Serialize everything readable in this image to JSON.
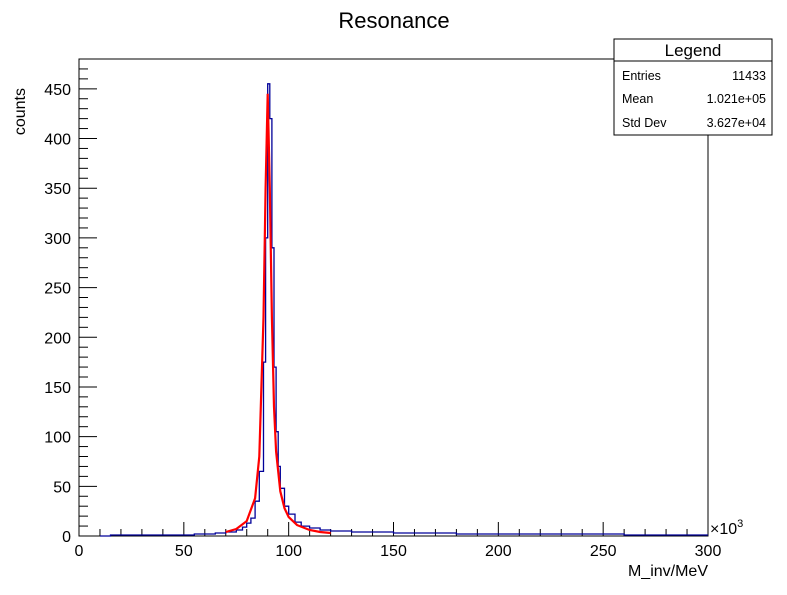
{
  "chart_data": {
    "type": "histogram",
    "title": "Resonance",
    "xlabel": "M_inv/MeV",
    "ylabel": "counts",
    "x_multiplier": "×10",
    "x_multiplier_exp": "3",
    "xlim": [
      0,
      300
    ],
    "ylim": [
      0,
      480
    ],
    "x_ticks": [
      0,
      50,
      100,
      150,
      200,
      250,
      300
    ],
    "y_ticks": [
      0,
      50,
      100,
      150,
      200,
      250,
      300,
      350,
      400,
      450
    ],
    "colors": {
      "histogram": "#000099",
      "fit": "#ff0000"
    },
    "histogram": {
      "name": "Resonance",
      "bins": [
        [
          10,
          0
        ],
        [
          15,
          1
        ],
        [
          20,
          1
        ],
        [
          25,
          1
        ],
        [
          30,
          1
        ],
        [
          35,
          1
        ],
        [
          40,
          1
        ],
        [
          45,
          1
        ],
        [
          50,
          1
        ],
        [
          55,
          2
        ],
        [
          60,
          2
        ],
        [
          65,
          3
        ],
        [
          70,
          4
        ],
        [
          75,
          6
        ],
        [
          78,
          9
        ],
        [
          80,
          13
        ],
        [
          82,
          18
        ],
        [
          84,
          35
        ],
        [
          86,
          65
        ],
        [
          88,
          175
        ],
        [
          89,
          300
        ],
        [
          90,
          455
        ],
        [
          91,
          420
        ],
        [
          92,
          290
        ],
        [
          93,
          170
        ],
        [
          94,
          105
        ],
        [
          95,
          70
        ],
        [
          96,
          48
        ],
        [
          98,
          30
        ],
        [
          100,
          22
        ],
        [
          103,
          14
        ],
        [
          106,
          10
        ],
        [
          110,
          8
        ],
        [
          115,
          6
        ],
        [
          120,
          5
        ],
        [
          130,
          4
        ],
        [
          140,
          4
        ],
        [
          150,
          3
        ],
        [
          160,
          3
        ],
        [
          170,
          3
        ],
        [
          180,
          2
        ],
        [
          190,
          2
        ],
        [
          200,
          2
        ],
        [
          210,
          2
        ],
        [
          220,
          2
        ],
        [
          230,
          2
        ],
        [
          240,
          2
        ],
        [
          250,
          2
        ],
        [
          260,
          1
        ],
        [
          270,
          1
        ],
        [
          280,
          1
        ],
        [
          290,
          1
        ],
        [
          300,
          1
        ]
      ]
    },
    "fit": {
      "name": "fit",
      "x": [
        70,
        75,
        80,
        84,
        86,
        88,
        89,
        90,
        91,
        92,
        93,
        94,
        96,
        98,
        100,
        104,
        110,
        115,
        120
      ],
      "y": [
        4,
        7,
        15,
        38,
        80,
        220,
        350,
        445,
        350,
        220,
        130,
        85,
        45,
        28,
        19,
        11,
        6,
        4,
        3
      ]
    },
    "stats": {
      "title": "Legend",
      "rows": [
        {
          "label": "Entries",
          "value": "11433"
        },
        {
          "label": "Mean",
          "value": "1.021e+05"
        },
        {
          "label": "Std Dev",
          "value": "3.627e+04"
        }
      ]
    }
  }
}
